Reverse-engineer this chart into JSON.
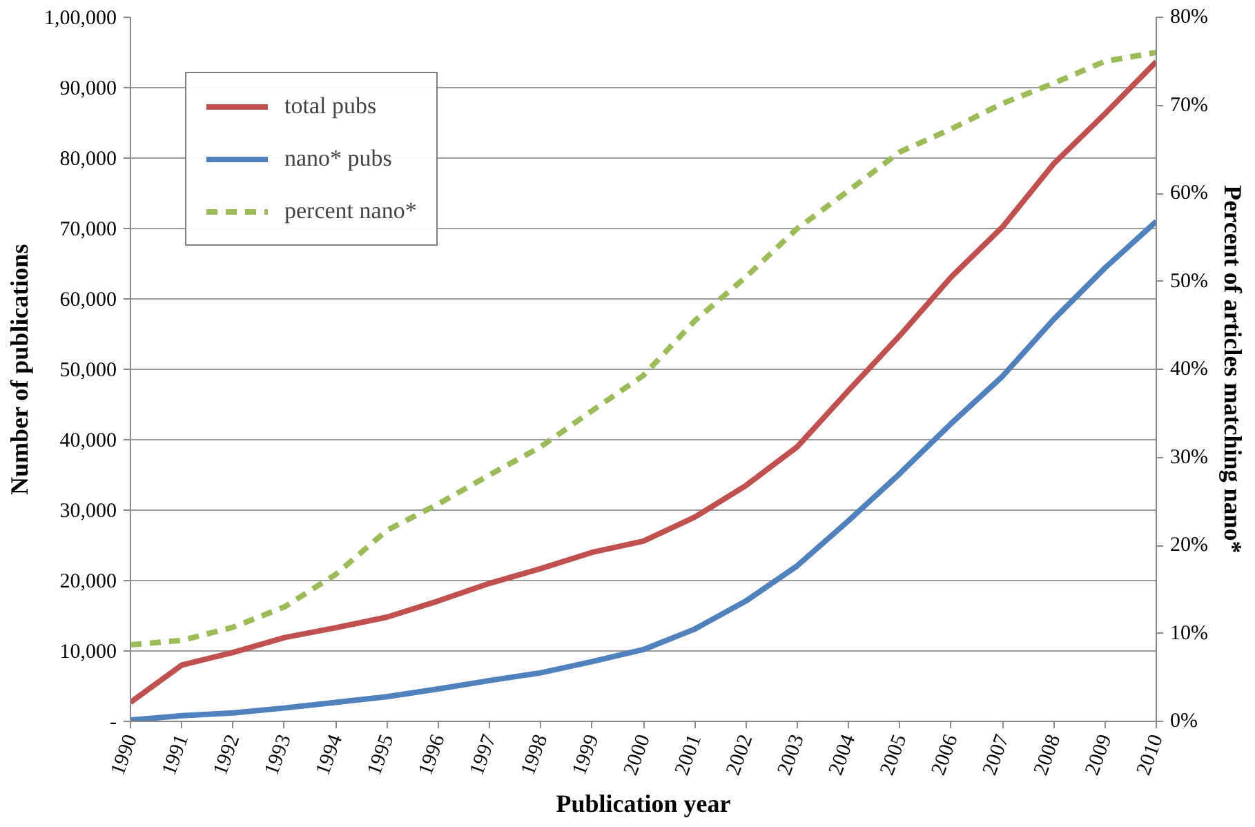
{
  "chart_data": {
    "type": "line",
    "xlabel": "Publication year",
    "ylabel": "Number of publications",
    "y2label": "Percent of articles matching nano*",
    "categories": [
      "1990",
      "1991",
      "1992",
      "1993",
      "1994",
      "1995",
      "1996",
      "1997",
      "1998",
      "1999",
      "2000",
      "2001",
      "2002",
      "2003",
      "2004",
      "2005",
      "2006",
      "2007",
      "2008",
      "2009",
      "2010"
    ],
    "series": [
      {
        "name": "total pubs",
        "color": "#c0504d",
        "line_style": "solid",
        "values": [
          2700,
          8000,
          9800,
          11900,
          13300,
          14800,
          17100,
          19600,
          21700,
          24000,
          25600,
          29000,
          33500,
          39000,
          47000,
          54800,
          63100,
          70200,
          79200,
          86300,
          93700
        ]
      },
      {
        "name": "nano* pubs",
        "color": "#4f81bd",
        "line_style": "solid",
        "values": [
          200,
          800,
          1200,
          1900,
          2700,
          3500,
          4600,
          5800,
          6900,
          8500,
          10200,
          13100,
          17100,
          22100,
          28500,
          35200,
          42300,
          49000,
          57100,
          64400,
          71000
        ]
      },
      {
        "name": "percent nano*",
        "color": "#9bbb59",
        "line_style": "dashed",
        "axis": "y2",
        "values": [
          8.7,
          9.2,
          10.7,
          13,
          16.7,
          21.7,
          24.7,
          28,
          31.2,
          35.3,
          39.3,
          45.5,
          50.5,
          56,
          60.3,
          64.7,
          67.3,
          70.2,
          72.5,
          75,
          76
        ]
      }
    ],
    "ylim": [
      0,
      100000
    ],
    "yticks": [
      {
        "value": 0,
        "label": "-"
      },
      {
        "value": 10000,
        "label": "10,000"
      },
      {
        "value": 20000,
        "label": "20,000"
      },
      {
        "value": 30000,
        "label": "30,000"
      },
      {
        "value": 40000,
        "label": "40,000"
      },
      {
        "value": 50000,
        "label": "50,000"
      },
      {
        "value": 60000,
        "label": "60,000"
      },
      {
        "value": 70000,
        "label": "70,000"
      },
      {
        "value": 80000,
        "label": "80,000"
      },
      {
        "value": 90000,
        "label": "90,000"
      },
      {
        "value": 100000,
        "label": "1,00,000"
      }
    ],
    "y2lim": [
      0,
      80
    ],
    "y2ticks": [
      {
        "value": 0,
        "label": "0%"
      },
      {
        "value": 10,
        "label": "10%"
      },
      {
        "value": 20,
        "label": "20%"
      },
      {
        "value": 30,
        "label": "30%"
      },
      {
        "value": 40,
        "label": "40%"
      },
      {
        "value": 50,
        "label": "50%"
      },
      {
        "value": 60,
        "label": "60%"
      },
      {
        "value": 70,
        "label": "70%"
      },
      {
        "value": 80,
        "label": "80%"
      }
    ],
    "grid": "y",
    "legend": "top left",
    "marker": "none"
  }
}
